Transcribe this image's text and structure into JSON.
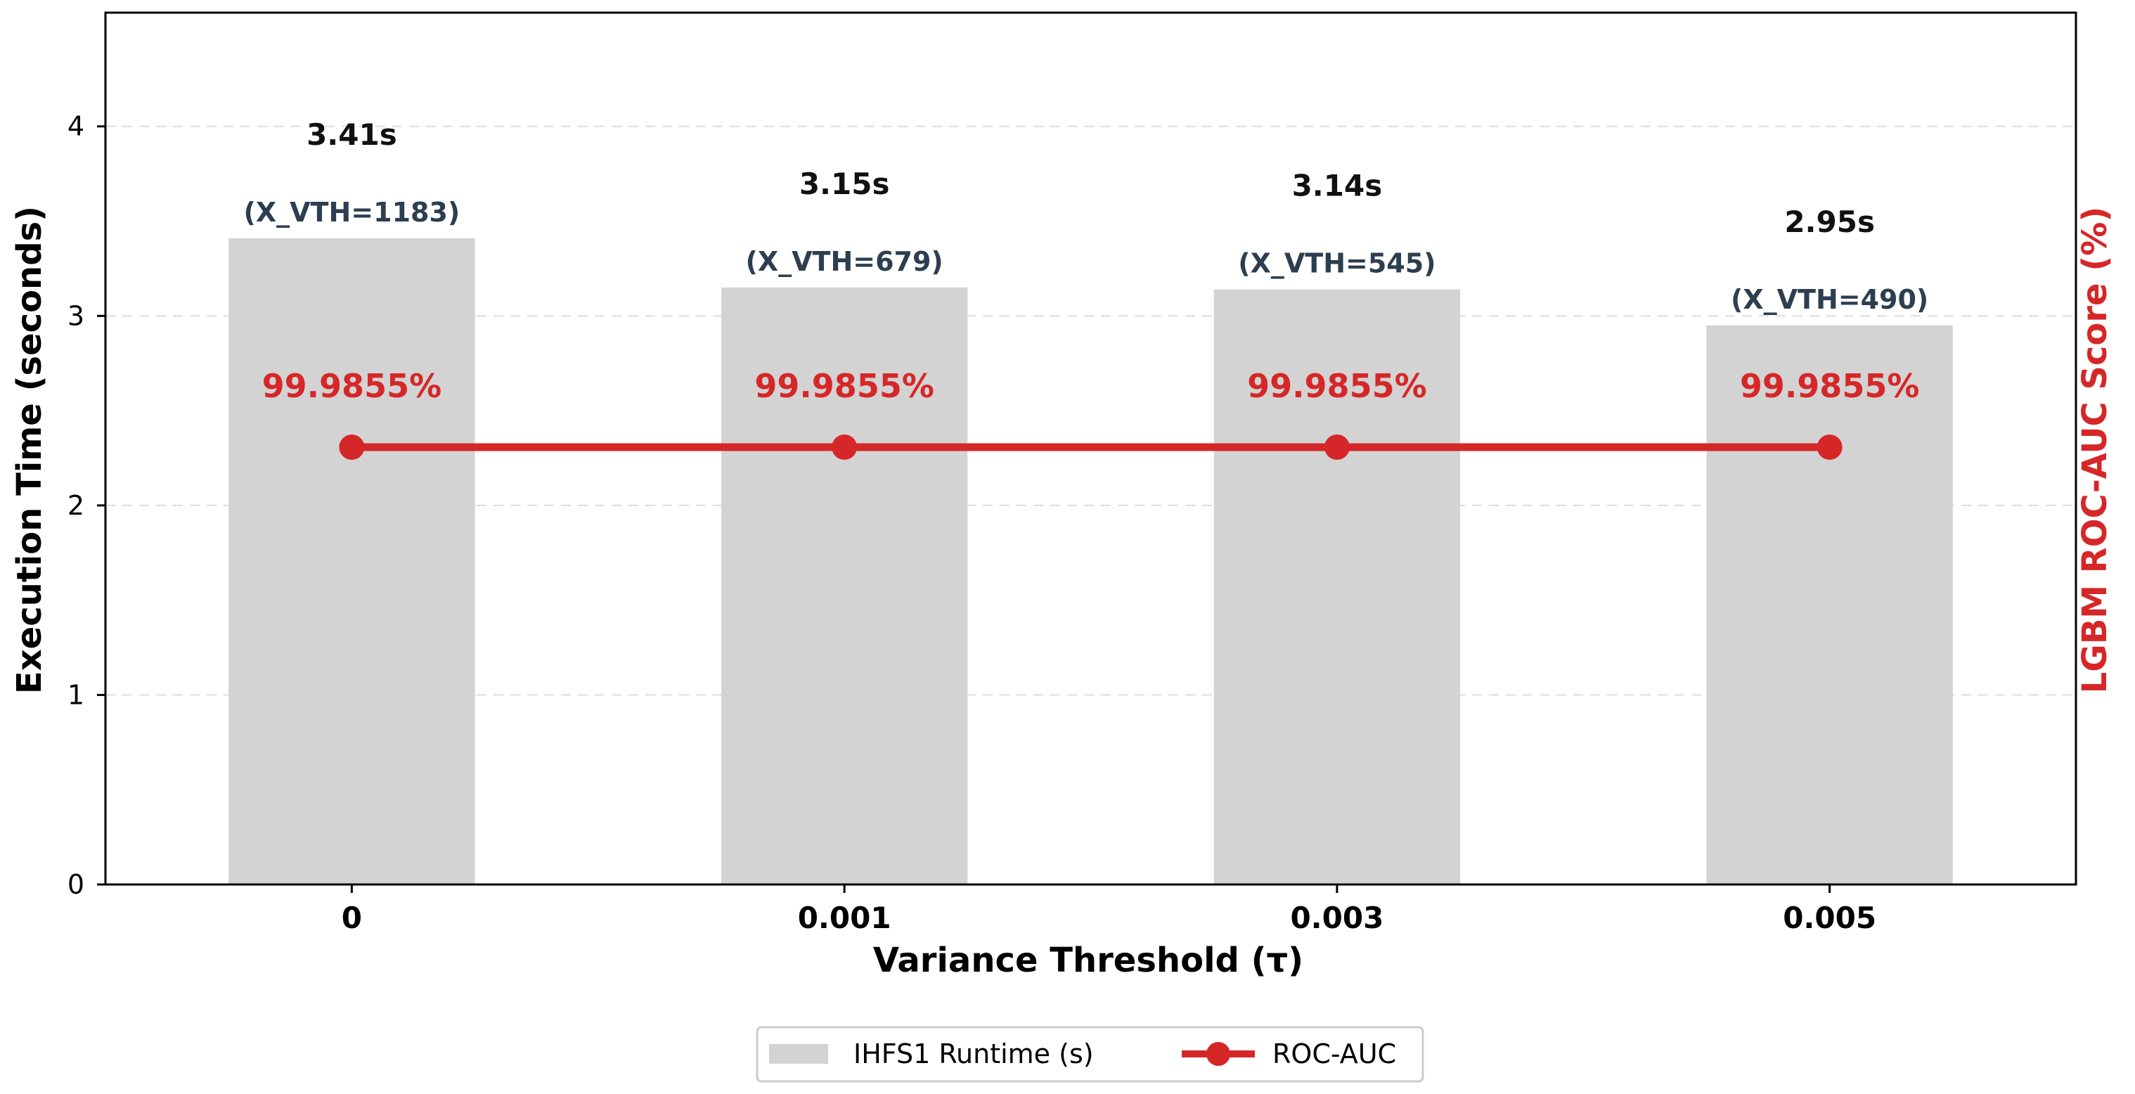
{
  "chart_data": {
    "type": "bar",
    "categories": [
      "0",
      "0.001",
      "0.003",
      "0.005"
    ],
    "series": [
      {
        "name": "IHFS1 Runtime (s)",
        "type": "bar",
        "axis": "left",
        "values": [
          3.41,
          3.15,
          3.14,
          2.95
        ],
        "value_labels": [
          "3.41s",
          "3.15s",
          "3.14s",
          "2.95s"
        ],
        "feature_labels": [
          "(X_VTH=1183)",
          "(X_VTH=679)",
          "(X_VTH=545)",
          "(X_VTH=490)"
        ],
        "color": "#d3d3d3"
      },
      {
        "name": "ROC-AUC",
        "type": "line",
        "axis": "right",
        "values": [
          99.9855,
          99.9855,
          99.9855,
          99.9855
        ],
        "value_labels": [
          "99.9855%",
          "99.9855%",
          "99.9855%",
          "99.9855%"
        ],
        "color": "#d62728"
      }
    ],
    "xlabel": "Variance Threshold (τ)",
    "ylabel": "Execution Time (seconds)",
    "y2label": "LGBM ROC-AUC Score (%)",
    "ylim": [
      0,
      4.6
    ],
    "yticks": [
      "0",
      "1",
      "2",
      "3",
      "4"
    ],
    "ytick_values": [
      0,
      1,
      2,
      3,
      4
    ],
    "grid": "horizontal dashed",
    "legend_placement": "bottom-center",
    "colors": {
      "bar": "#d3d3d3",
      "line": "#d62728",
      "feature_label": "#2c3e50",
      "value_label": "#111111",
      "right_axis_label": "#d62728"
    }
  }
}
